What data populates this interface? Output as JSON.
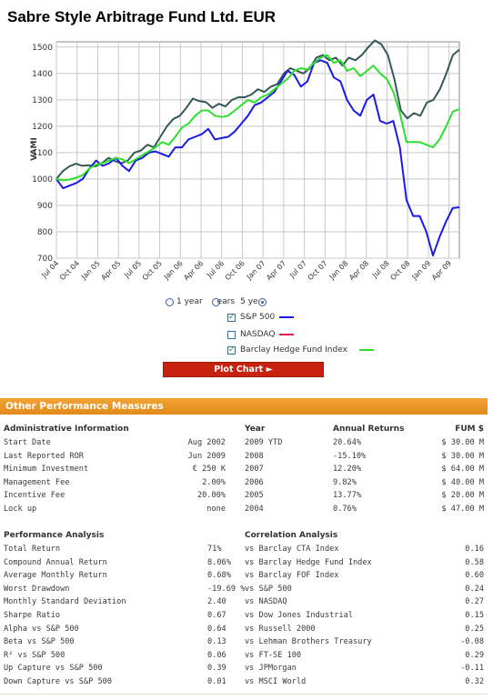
{
  "title": "Sabre Style Arbitrage Fund Ltd. EUR",
  "chart_data": {
    "type": "line",
    "ylabel": "VAMI",
    "ylim": [
      700,
      1520
    ],
    "yticks": [
      700,
      800,
      900,
      1000,
      1100,
      1200,
      1300,
      1400,
      1500
    ],
    "xticks": [
      "Jul 04",
      "Oct 04",
      "Jan 05",
      "Apr 05",
      "Jul 05",
      "Oct 05",
      "Jan 06",
      "Apr 06",
      "Jul 06",
      "Oct 06",
      "Jan 07",
      "Apr 07",
      "Jul 07",
      "Oct 07",
      "Jan 08",
      "Apr 08",
      "Jul 08",
      "Oct 08",
      "Jan 09",
      "Apr 09"
    ],
    "grid": true,
    "series": [
      {
        "name": "Sabre Style Arbitrage Fund Ltd. EUR",
        "color": "#34585a",
        "values": [
          1000,
          1030,
          1048,
          1058,
          1050,
          1052,
          1048,
          1060,
          1080,
          1068,
          1060,
          1070,
          1100,
          1108,
          1130,
          1120,
          1160,
          1200,
          1228,
          1240,
          1270,
          1305,
          1295,
          1292,
          1270,
          1285,
          1275,
          1300,
          1310,
          1310,
          1320,
          1340,
          1330,
          1350,
          1360,
          1400,
          1420,
          1410,
          1400,
          1420,
          1460,
          1470,
          1450,
          1460,
          1430,
          1460,
          1450,
          1470,
          1500,
          1525,
          1510,
          1470,
          1380,
          1260,
          1230,
          1250,
          1240,
          1290,
          1300,
          1340,
          1400,
          1470,
          1490
        ]
      },
      {
        "name": "S&P 500",
        "color": "#1a1ae8",
        "values": [
          1000,
          965,
          975,
          985,
          1000,
          1040,
          1070,
          1050,
          1060,
          1080,
          1050,
          1030,
          1070,
          1080,
          1100,
          1105,
          1095,
          1085,
          1120,
          1120,
          1150,
          1160,
          1170,
          1190,
          1150,
          1155,
          1160,
          1180,
          1210,
          1240,
          1280,
          1290,
          1310,
          1330,
          1370,
          1410,
          1395,
          1350,
          1370,
          1440,
          1450,
          1440,
          1385,
          1370,
          1300,
          1260,
          1240,
          1300,
          1320,
          1220,
          1210,
          1220,
          1120,
          920,
          860,
          860,
          800,
          710,
          780,
          840,
          890,
          893
        ]
      },
      {
        "name": "Barclay Hedge Fund Index",
        "color": "#2ee02e",
        "values": [
          1000,
          995,
          998,
          1005,
          1015,
          1040,
          1055,
          1060,
          1070,
          1080,
          1075,
          1060,
          1075,
          1090,
          1105,
          1120,
          1140,
          1130,
          1160,
          1195,
          1210,
          1240,
          1260,
          1260,
          1240,
          1235,
          1240,
          1260,
          1280,
          1300,
          1290,
          1310,
          1320,
          1340,
          1360,
          1380,
          1410,
          1420,
          1415,
          1440,
          1460,
          1470,
          1440,
          1450,
          1410,
          1420,
          1390,
          1410,
          1430,
          1400,
          1380,
          1330,
          1250,
          1140,
          1140,
          1140,
          1130,
          1120,
          1150,
          1200,
          1255,
          1265
        ]
      }
    ]
  },
  "controls": {
    "radio_1": "1 year",
    "radio_3": "3 years",
    "radio_5": "5 years",
    "radio_1_short": "1 year",
    "radio_3_short": "ears",
    "radio_5_short": "5 ye",
    "legend": [
      {
        "label": "S&P 500",
        "checked": true,
        "color": "#1a1ae8"
      },
      {
        "label": "NASDAQ",
        "checked": false,
        "color": "#e8204a"
      },
      {
        "label": "Barclay Hedge Fund Index",
        "checked": true,
        "color": "#2ee02e"
      }
    ],
    "plot_button": "Plot Chart ►"
  },
  "perf": {
    "banner": "Other Performance Measures",
    "admin_header": "Administrative Information",
    "admin": [
      {
        "label": "Start Date",
        "value": "Aug 2002"
      },
      {
        "label": "Last Reported ROR",
        "value": "Jun 2009"
      },
      {
        "label": "Minimum Investment",
        "value": "€ 250 K"
      },
      {
        "label": "Management Fee",
        "value": "2.00%"
      },
      {
        "label": "Incentive Fee",
        "value": "20.00%"
      },
      {
        "label": "Lock up",
        "value": "none"
      }
    ],
    "year_header": "Year",
    "returns_header": "Annual Returns",
    "fum_header": "FUM $",
    "years": [
      {
        "year": "2009 YTD",
        "ret": "20.64%",
        "fum": "$ 30.00 M"
      },
      {
        "year": "2008",
        "ret": "-15.10%",
        "fum": "$ 30.00 M"
      },
      {
        "year": "2007",
        "ret": "12.20%",
        "fum": "$ 64.00 M"
      },
      {
        "year": "2006",
        "ret": "9.82%",
        "fum": "$ 40.00 M"
      },
      {
        "year": "2005",
        "ret": "13.77%",
        "fum": "$ 20.00 M"
      },
      {
        "year": "2004",
        "ret": "0.76%",
        "fum": "$ 47.00 M"
      }
    ],
    "analysis_header": "Performance Analysis",
    "analysis": [
      {
        "label": "Total Return",
        "value": "71%"
      },
      {
        "label": "Compound Annual Return",
        "value": "8.06%"
      },
      {
        "label": "Average Monthly Return",
        "value": "0.68%"
      },
      {
        "label": "Worst Drawdown",
        "value": "-19.69 %"
      },
      {
        "label": "Monthly Standard Deviation",
        "value": "2.40"
      },
      {
        "label": "Sharpe Ratio",
        "value": "0.67"
      },
      {
        "label": "Alpha vs S&P 500",
        "value": "0.64"
      },
      {
        "label": "Beta vs S&P 500",
        "value": "0.13"
      },
      {
        "label": "R² vs S&P 500",
        "value": "0.06"
      },
      {
        "label": "Up Capture vs S&P 500",
        "value": "0.39"
      },
      {
        "label": "Down Capture vs S&P 500",
        "value": "0.01"
      }
    ],
    "corr_header": "Correlation Analysis",
    "corr": [
      {
        "label": "vs Barclay CTA Index",
        "value": "0.16"
      },
      {
        "label": "vs Barclay Hedge Fund Index",
        "value": "0.58"
      },
      {
        "label": "vs Barclay FOF Index",
        "value": "0.60"
      },
      {
        "label": "vs S&P 500",
        "value": "0.24"
      },
      {
        "label": "vs NASDAQ",
        "value": "0.27"
      },
      {
        "label": "vs Dow Jones Industrial",
        "value": "0.15"
      },
      {
        "label": "vs Russell 2000",
        "value": "0.25"
      },
      {
        "label": "vs Lehman Brothers Treasury",
        "value": "-0.08"
      },
      {
        "label": "vs FT-SE 100",
        "value": "0.29"
      },
      {
        "label": "vs JPMorgan",
        "value": "-0.11"
      },
      {
        "label": "vs MSCI World",
        "value": "0.32"
      }
    ]
  }
}
